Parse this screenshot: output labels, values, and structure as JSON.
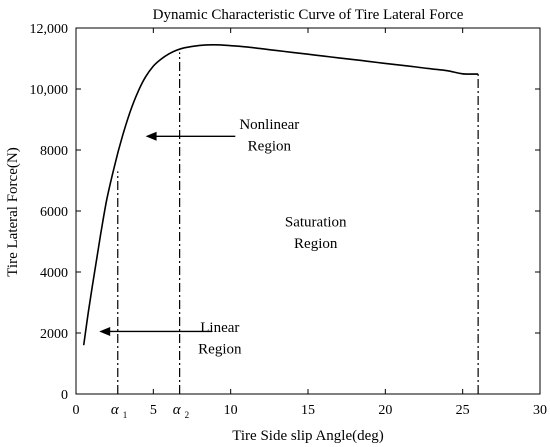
{
  "chart_data": {
    "type": "line",
    "title": "Dynamic Characteristic Curve of Tire Lateral Force",
    "xlabel": "Tire Side slip Angle(deg)",
    "ylabel": "Tire Lateral Force(N)",
    "xlim": [
      0,
      30
    ],
    "ylim": [
      0,
      12000
    ],
    "x_ticks": [
      0,
      5,
      10,
      15,
      20,
      25,
      30
    ],
    "x_tick_labels": [
      "0",
      "5",
      "10",
      "15",
      "20",
      "25",
      "30"
    ],
    "y_ticks": [
      0,
      2000,
      4000,
      6000,
      8000,
      10000,
      12000
    ],
    "y_tick_labels": [
      "0",
      "2000",
      "4000",
      "6000",
      "8000",
      "10,000",
      "12,000"
    ],
    "grid": false,
    "line_color": "#000000",
    "series": [
      {
        "x": [
          0.5,
          0.8,
          1.2,
          1.6,
          2.0,
          2.5,
          3.0,
          3.5,
          4.0,
          4.5,
          5.0,
          5.5,
          6.0,
          6.5,
          7.0,
          8.0,
          9.0,
          10.0,
          11.0,
          12.0,
          13.0,
          14.0,
          15.0,
          16.0,
          17.0,
          18.0,
          19.0,
          20.0,
          21.0,
          22.0,
          23.0,
          24.0,
          25.0,
          26.0
        ],
        "y": [
          1600,
          2700,
          4000,
          5250,
          6400,
          7500,
          8450,
          9250,
          9900,
          10400,
          10750,
          10980,
          11150,
          11270,
          11350,
          11430,
          11450,
          11420,
          11380,
          11320,
          11260,
          11200,
          11140,
          11080,
          11020,
          10960,
          10900,
          10840,
          10780,
          10720,
          10660,
          10600,
          10500,
          10490
        ]
      }
    ],
    "alpha_markers": [
      {
        "label": "α",
        "subscript": "1",
        "x": 2.7,
        "y_top": 7300
      },
      {
        "label": "α",
        "subscript": "2",
        "x": 6.7,
        "y_top": 11200
      }
    ],
    "end_marker": {
      "x": 26,
      "y_top": 10490
    },
    "annotations": [
      {
        "lines": [
          "Nonlinear",
          "Region"
        ],
        "text_x": 12.5,
        "text_y": [
          8850,
          8150
        ],
        "arrow_from_x": 10.3,
        "arrow_to_x": 4.5,
        "arrow_y": 8450
      },
      {
        "lines": [
          "Saturation",
          "Region"
        ],
        "text_x": 15.5,
        "text_y": [
          5650,
          4950
        ],
        "arrow_from_x": null,
        "arrow_to_x": null,
        "arrow_y": null
      },
      {
        "lines": [
          "Linear",
          "Region"
        ],
        "text_x": 9.3,
        "text_y": [
          2200,
          1500
        ],
        "arrow_from_x": 8.8,
        "arrow_to_x": 1.5,
        "arrow_y": 2050
      }
    ]
  }
}
